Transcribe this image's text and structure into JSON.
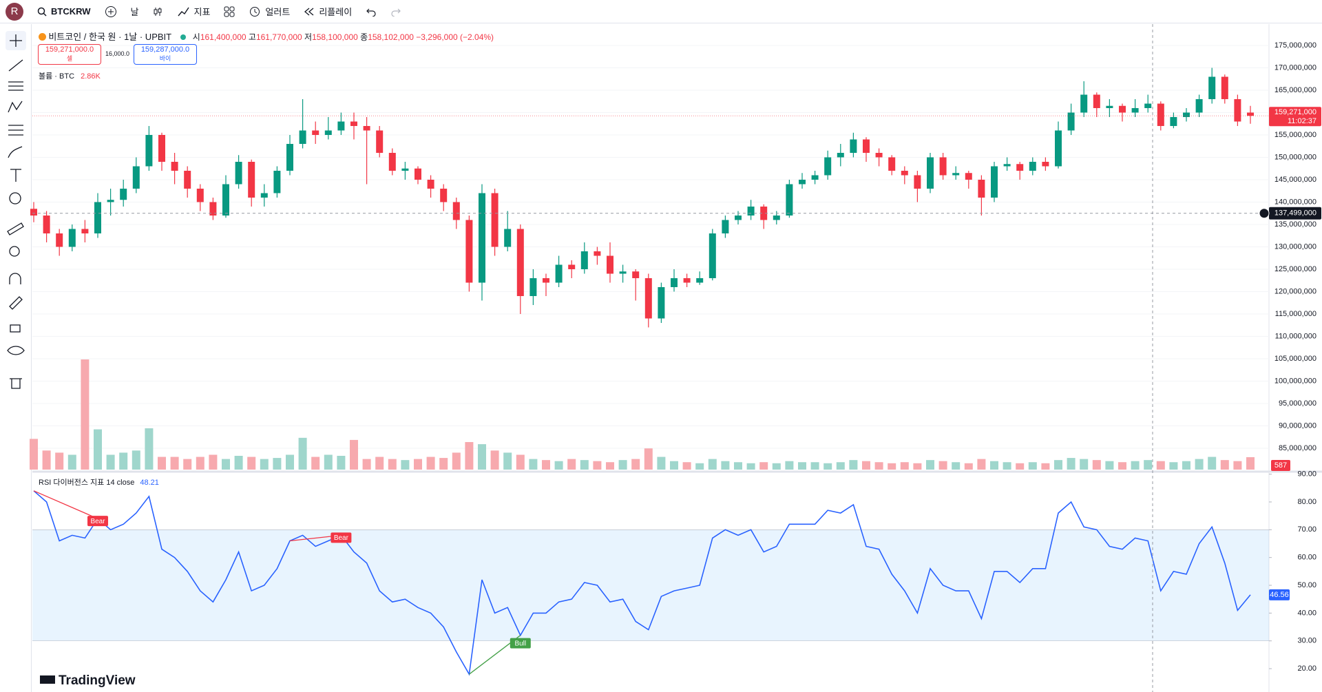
{
  "avatar": "R",
  "toolbar": {
    "symbol": "BTCKRW",
    "interval": "날",
    "indicators": "지표",
    "alerts": "얼러트",
    "replay": "리플레이"
  },
  "legend": {
    "symbol": "비트코인 / 한국 원 · 1날 · UPBIT",
    "o_label": "시",
    "o": "161,400,000",
    "h_label": "고",
    "h": "161,770,000",
    "l_label": "저",
    "l": "158,100,000",
    "c_label": "종",
    "c": "158,102,000",
    "change": "−3,296,000 (−2.04%)",
    "sell": "159,271,000.0",
    "sell_label": "셀",
    "spread": "16,000.0",
    "buy": "159,287,000.0",
    "buy_label": "바이",
    "volume_title": "볼륨 · BTC",
    "volume_value": "2.86K"
  },
  "rsi_legend": {
    "title": "RSI 다이버전스 지표 14 close",
    "value": "48.21"
  },
  "watermark": "TradingView",
  "chart_data": [
    {
      "type": "candlestick",
      "up_color": "#089981",
      "down_color": "#f23645",
      "volume_up_color": "#9fd6cc",
      "volume_down_color": "#f7a9ae",
      "grid": true,
      "ylim": [
        80230000,
        179460000
      ],
      "yticks": [
        {
          "value": 175000000.0,
          "label": "175,000,000"
        },
        {
          "value": 170000000.0,
          "label": "170,000,000"
        },
        {
          "value": 165000000.0,
          "label": "165,000,000"
        },
        {
          "value": 160000000.0,
          "label": "160,000,000"
        },
        {
          "value": 155000000.0,
          "label": "155,000,000"
        },
        {
          "value": 150000000.0,
          "label": "150,000,000"
        },
        {
          "value": 145000000.0,
          "label": "145,000,000"
        },
        {
          "value": 140000000.0,
          "label": "140,000,000"
        },
        {
          "value": 135000000.0,
          "label": "135,000,000"
        },
        {
          "value": 130000000.0,
          "label": "130,000,000"
        },
        {
          "value": 125000000.0,
          "label": "125,000,000"
        },
        {
          "value": 120000000.0,
          "label": "120,000,000"
        },
        {
          "value": 115000000.0,
          "label": "115,000,000"
        },
        {
          "value": 110000000.0,
          "label": "110,000,000"
        },
        {
          "value": 105000000.0,
          "label": "105,000,000"
        },
        {
          "value": 100000000.0,
          "label": "100,000,000"
        },
        {
          "value": 95000000.0,
          "label": "95,000,000"
        },
        {
          "value": 90000000.0,
          "label": "90,000,000"
        },
        {
          "value": 85000000.0,
          "label": "85,000,000"
        }
      ],
      "last_price": {
        "value": 159271000.0,
        "label": "159,271,000"
      },
      "last_time": "11:02:37",
      "crosshair": {
        "value": 137499000.0,
        "label": "137,499,000"
      },
      "ohlc": [
        [
          138500000.0,
          140000000.0,
          135500000.0,
          137000000.0
        ],
        [
          137000000.0,
          138000000.0,
          131000000.0,
          133000000.0
        ],
        [
          133000000.0,
          134000000.0,
          128000000.0,
          130000000.0
        ],
        [
          130000000.0,
          135000000.0,
          129000000.0,
          134000000.0
        ],
        [
          134000000.0,
          136000000.0,
          131000000.0,
          133000000.0
        ],
        [
          133000000.0,
          142000000.0,
          132000000.0,
          140000000.0
        ],
        [
          140000000.0,
          143000000.0,
          137000000.0,
          140500000.0
        ],
        [
          140500000.0,
          145000000.0,
          139000000.0,
          143000000.0
        ],
        [
          143000000.0,
          150000000.0,
          142000000.0,
          148000000.0
        ],
        [
          148000000.0,
          157000000.0,
          147000000.0,
          155000000.0
        ],
        [
          155000000.0,
          155500000.0,
          147000000.0,
          149000000.0
        ],
        [
          149000000.0,
          151000000.0,
          144000000.0,
          147000000.0
        ],
        [
          147000000.0,
          148000000.0,
          141000000.0,
          143000000.0
        ],
        [
          143000000.0,
          144000000.0,
          138000000.0,
          140000000.0
        ],
        [
          140000000.0,
          141000000.0,
          136000000.0,
          137000000.0
        ],
        [
          137000000.0,
          146000000.0,
          136500000.0,
          144000000.0
        ],
        [
          144000000.0,
          150500000.0,
          143000000.0,
          149000000.0
        ],
        [
          149000000.0,
          149500000.0,
          139000000.0,
          141000000.0
        ],
        [
          141000000.0,
          144000000.0,
          139000000.0,
          142000000.0
        ],
        [
          142000000.0,
          148000000.0,
          141000000.0,
          147000000.0
        ],
        [
          147000000.0,
          155000000.0,
          146000000.0,
          153000000.0
        ],
        [
          153000000.0,
          163000000.0,
          152000000.0,
          156000000.0
        ],
        [
          156000000.0,
          158000000.0,
          153000000.0,
          155000000.0
        ],
        [
          155000000.0,
          159000000.0,
          154000000.0,
          156000000.0
        ],
        [
          156000000.0,
          160000000.0,
          155000000.0,
          158000000.0
        ],
        [
          158000000.0,
          160000000.0,
          154000000.0,
          157000000.0
        ],
        [
          157000000.0,
          159000000.0,
          144000000.0,
          156000000.0
        ],
        [
          156000000.0,
          157000000.0,
          150000000.0,
          151000000.0
        ],
        [
          151000000.0,
          152000000.0,
          146000000.0,
          147000000.0
        ],
        [
          147000000.0,
          149000000.0,
          145000000.0,
          147500000.0
        ],
        [
          147500000.0,
          148000000.0,
          144000000.0,
          145000000.0
        ],
        [
          145000000.0,
          146000000.0,
          141000000.0,
          143000000.0
        ],
        [
          143000000.0,
          144000000.0,
          138000000.0,
          140000000.0
        ],
        [
          140000000.0,
          141000000.0,
          134000000.0,
          136000000.0
        ],
        [
          136000000.0,
          137000000.0,
          120000000.0,
          122000000.0
        ],
        [
          122000000.0,
          144000000.0,
          118000000.0,
          142000000.0
        ],
        [
          142000000.0,
          143000000.0,
          128000000.0,
          130000000.0
        ],
        [
          130000000.0,
          138000000.0,
          129000000.0,
          134000000.0
        ],
        [
          134000000.0,
          135000000.0,
          115000000.0,
          119000000.0
        ],
        [
          119000000.0,
          125000000.0,
          117000000.0,
          123000000.0
        ],
        [
          123000000.0,
          124000000.0,
          119000000.0,
          122000000.0
        ],
        [
          122000000.0,
          128000000.0,
          121000000.0,
          126000000.0
        ],
        [
          126000000.0,
          127000000.0,
          123000000.0,
          125000000.0
        ],
        [
          125000000.0,
          131000000.0,
          124000000.0,
          129000000.0
        ],
        [
          129000000.0,
          130000000.0,
          126000000.0,
          128000000.0
        ],
        [
          128000000.0,
          131000000.0,
          122000000.0,
          124000000.0
        ],
        [
          124000000.0,
          126000000.0,
          122000000.0,
          124500000.0
        ],
        [
          124500000.0,
          125000000.0,
          118000000.0,
          123000000.0
        ],
        [
          123000000.0,
          124000000.0,
          112000000.0,
          114000000.0
        ],
        [
          114000000.0,
          122000000.0,
          113000000.0,
          121000000.0
        ],
        [
          121000000.0,
          125000000.0,
          120000000.0,
          123000000.0
        ],
        [
          123000000.0,
          124000000.0,
          121000000.0,
          122000000.0
        ],
        [
          122000000.0,
          124500000.0,
          121500000.0,
          123000000.0
        ],
        [
          123000000.0,
          134000000.0,
          122500000.0,
          133000000.0
        ],
        [
          133000000.0,
          137000000.0,
          132000000.0,
          136000000.0
        ],
        [
          136000000.0,
          138000000.0,
          135000000.0,
          137000000.0
        ],
        [
          137000000.0,
          140500000.0,
          136000000.0,
          139000000.0
        ],
        [
          139000000.0,
          139500000.0,
          134000000.0,
          136000000.0
        ],
        [
          136000000.0,
          138000000.0,
          135000000.0,
          137000000.0
        ],
        [
          137000000.0,
          145000000.0,
          136500000.0,
          144000000.0
        ],
        [
          144000000.0,
          146500000.0,
          143000000.0,
          145000000.0
        ],
        [
          145000000.0,
          147000000.0,
          144000000.0,
          146000000.0
        ],
        [
          146000000.0,
          151500000.0,
          145000000.0,
          150000000.0
        ],
        [
          150000000.0,
          153000000.0,
          148000000.0,
          151000000.0
        ],
        [
          151000000.0,
          155500000.0,
          150000000.0,
          154000000.0
        ],
        [
          154000000.0,
          154500000.0,
          149000000.0,
          151000000.0
        ],
        [
          151000000.0,
          152000000.0,
          148000000.0,
          150000000.0
        ],
        [
          150000000.0,
          150500000.0,
          146000000.0,
          147000000.0
        ],
        [
          147000000.0,
          148000000.0,
          144000000.0,
          146000000.0
        ],
        [
          146000000.0,
          147000000.0,
          140000000.0,
          143000000.0
        ],
        [
          143000000.0,
          151000000.0,
          142000000.0,
          150000000.0
        ],
        [
          150000000.0,
          151000000.0,
          145000000.0,
          146000000.0
        ],
        [
          146000000.0,
          148000000.0,
          145000000.0,
          146500000.0
        ],
        [
          146500000.0,
          147000000.0,
          143000000.0,
          145000000.0
        ],
        [
          145000000.0,
          146000000.0,
          137000000.0,
          141000000.0
        ],
        [
          141000000.0,
          149000000.0,
          140000000.0,
          148000000.0
        ],
        [
          148000000.0,
          150000000.0,
          147000000.0,
          148500000.0
        ],
        [
          148500000.0,
          149000000.0,
          145000000.0,
          147000000.0
        ],
        [
          147000000.0,
          150000000.0,
          146000000.0,
          149000000.0
        ],
        [
          149000000.0,
          150000000.0,
          147000000.0,
          148000000.0
        ],
        [
          148000000.0,
          158000000.0,
          147500000.0,
          156000000.0
        ],
        [
          156000000.0,
          162000000.0,
          155000000.0,
          160000000.0
        ],
        [
          160000000.0,
          167000000.0,
          159000000.0,
          164000000.0
        ],
        [
          164000000.0,
          164500000.0,
          159000000.0,
          161000000.0
        ],
        [
          161000000.0,
          163000000.0,
          159000000.0,
          161500000.0
        ],
        [
          161500000.0,
          162000000.0,
          158000000.0,
          160000000.0
        ],
        [
          160000000.0,
          163000000.0,
          159000000.0,
          161000000.0
        ],
        [
          161000000.0,
          164000000.0,
          160000000.0,
          162000000.0
        ],
        [
          162000000.0,
          162500000.0,
          156000000.0,
          157000000.0
        ],
        [
          157000000.0,
          160000000.0,
          156500000.0,
          159000000.0
        ],
        [
          159000000.0,
          161000000.0,
          158000000.0,
          160000000.0
        ],
        [
          160000000.0,
          164000000.0,
          159000000.0,
          163000000.0
        ],
        [
          163000000.0,
          170000000.0,
          162000000.0,
          168000000.0
        ],
        [
          168000000.0,
          168500000.0,
          162000000.0,
          163000000.0
        ],
        [
          163000000.0,
          164000000.0,
          157000000.0,
          158000000.0
        ],
        [
          160000000.0,
          161500000.0,
          157500000.0,
          159271000.0
        ]
      ],
      "volume": [
        1450,
        900,
        800,
        700,
        5200,
        1900,
        700,
        800,
        900,
        1950,
        600,
        600,
        500,
        600,
        700,
        500,
        650,
        600,
        500,
        550,
        700,
        1500,
        600,
        700,
        650,
        1400,
        500,
        600,
        500,
        450,
        500,
        600,
        550,
        800,
        1300,
        1200,
        900,
        800,
        700,
        500,
        450,
        400,
        500,
        450,
        400,
        350,
        450,
        500,
        1000,
        600,
        400,
        350,
        300,
        500,
        400,
        350,
        300,
        350,
        300,
        400,
        350,
        350,
        300,
        350,
        450,
        400,
        350,
        300,
        350,
        300,
        450,
        400,
        350,
        300,
        500,
        400,
        350,
        300,
        350,
        300,
        450,
        550,
        500,
        450,
        400,
        350,
        400,
        450,
        400,
        350,
        400,
        500,
        600,
        450,
        400,
        587
      ]
    },
    {
      "type": "line",
      "color": "#2962ff",
      "band": [
        30,
        70
      ],
      "band_color": "rgba(33,150,243,0.1)",
      "ylim": [
        11.6,
        90.4
      ],
      "yticks": [
        {
          "value": 90,
          "label": "90.00"
        },
        {
          "value": 80,
          "label": "80.00"
        },
        {
          "value": 70,
          "label": "70.00"
        },
        {
          "value": 60,
          "label": "60.00"
        },
        {
          "value": 50,
          "label": "50.00"
        },
        {
          "value": 40,
          "label": "40.00"
        },
        {
          "value": 30,
          "label": "30.00"
        },
        {
          "value": 20,
          "label": "20.00"
        }
      ],
      "divergence_labels": [
        "Bear",
        "Bear",
        "Bull"
      ],
      "bear_color": "#f23645",
      "bull_color": "#43a047",
      "values": [
        84,
        80,
        66,
        68,
        67,
        74,
        70,
        72,
        76,
        82,
        63,
        60,
        55,
        48,
        44,
        52,
        62,
        48,
        50,
        56,
        66,
        68,
        64,
        66,
        68,
        62,
        58,
        48,
        44,
        45,
        42,
        40,
        35,
        26,
        18,
        52,
        40,
        42,
        32,
        40,
        40,
        44,
        45,
        51,
        50,
        44,
        45,
        37,
        34,
        46,
        48,
        49,
        50,
        67,
        70,
        68,
        70,
        62,
        64,
        72,
        72,
        72,
        77,
        76,
        79,
        64,
        63,
        54,
        48,
        40,
        56,
        50,
        48,
        48,
        38,
        55,
        55,
        51,
        56,
        56,
        76,
        80,
        71,
        70,
        64,
        63,
        67,
        66,
        48,
        55,
        54,
        65,
        71,
        58,
        41,
        46.56
      ]
    }
  ]
}
